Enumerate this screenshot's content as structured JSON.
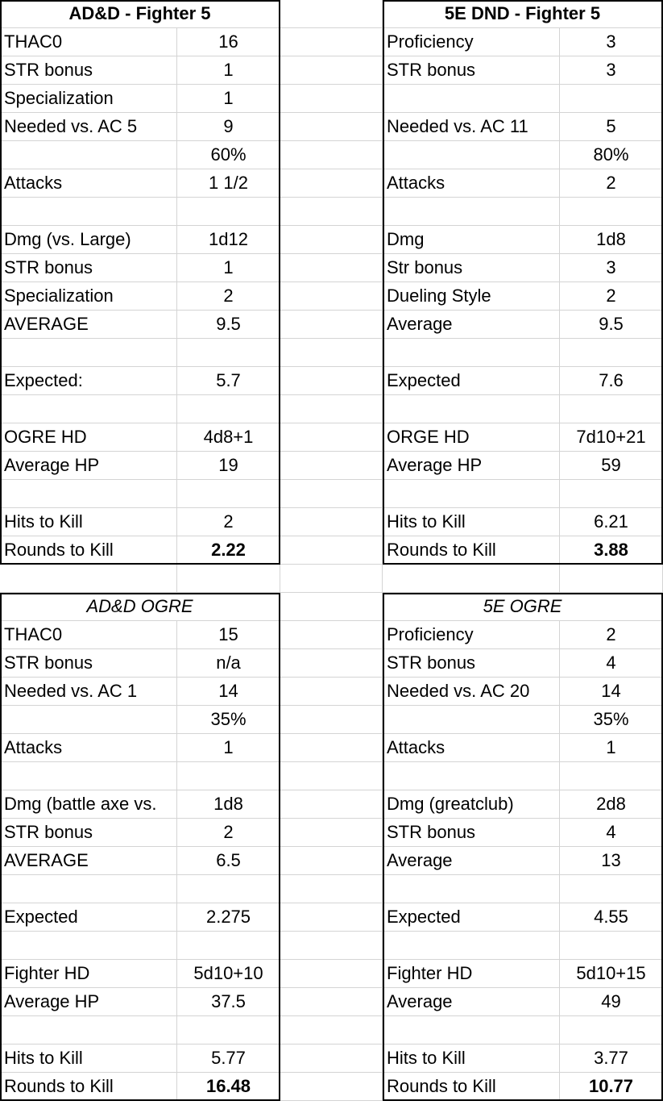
{
  "blocks": [
    {
      "id": "adnd-fighter",
      "title": "AD&D - Fighter 5",
      "title_style": "bold",
      "rows": [
        [
          "THAC0",
          "16"
        ],
        [
          "STR bonus",
          "1"
        ],
        [
          "Specialization",
          "1"
        ],
        [
          "Needed vs. AC 5",
          "9"
        ],
        [
          "",
          "60%"
        ],
        [
          "Attacks",
          "1 1/2"
        ],
        [
          "",
          ""
        ],
        [
          "Dmg (vs. Large)",
          "1d12"
        ],
        [
          "STR bonus",
          "1"
        ],
        [
          "Specialization",
          "2"
        ],
        [
          "AVERAGE",
          "9.5"
        ],
        [
          "",
          ""
        ],
        [
          "Expected:",
          "5.7"
        ],
        [
          "",
          ""
        ],
        [
          "OGRE HD",
          "4d8+1"
        ],
        [
          "Average HP",
          "19"
        ],
        [
          "",
          ""
        ],
        [
          "Hits to Kill",
          "2"
        ],
        [
          "Rounds to Kill",
          "2.22"
        ]
      ]
    },
    {
      "id": "5e-fighter",
      "title": "5E DND - Fighter 5",
      "title_style": "bold",
      "rows": [
        [
          "Proficiency",
          "3"
        ],
        [
          "STR bonus",
          "3"
        ],
        [
          "",
          ""
        ],
        [
          "Needed vs. AC 11",
          "5"
        ],
        [
          "",
          "80%"
        ],
        [
          "Attacks",
          "2"
        ],
        [
          "",
          ""
        ],
        [
          "Dmg",
          "1d8"
        ],
        [
          "Str bonus",
          "3"
        ],
        [
          "Dueling Style",
          "2"
        ],
        [
          "Average",
          "9.5"
        ],
        [
          "",
          ""
        ],
        [
          "Expected",
          "7.6"
        ],
        [
          "",
          ""
        ],
        [
          "ORGE HD",
          "7d10+21"
        ],
        [
          "Average HP",
          "59"
        ],
        [
          "",
          ""
        ],
        [
          "Hits to Kill",
          "6.21"
        ],
        [
          "Rounds to Kill",
          "3.88"
        ]
      ]
    },
    {
      "id": "adnd-ogre",
      "title": "AD&D OGRE",
      "title_style": "italic",
      "rows": [
        [
          "THAC0",
          "15"
        ],
        [
          "STR bonus",
          "n/a"
        ],
        [
          "Needed vs. AC 1",
          "14"
        ],
        [
          "",
          "35%"
        ],
        [
          "Attacks",
          "1"
        ],
        [
          "",
          ""
        ],
        [
          "Dmg (battle axe vs.",
          "1d8"
        ],
        [
          "STR bonus",
          "2"
        ],
        [
          "AVERAGE",
          "6.5"
        ],
        [
          "",
          ""
        ],
        [
          "Expected",
          "2.275"
        ],
        [
          "",
          ""
        ],
        [
          "Fighter HD",
          "5d10+10"
        ],
        [
          "Average HP",
          "37.5"
        ],
        [
          "",
          ""
        ],
        [
          "Hits to Kill",
          "5.77"
        ],
        [
          "Rounds to Kill",
          "16.48"
        ]
      ]
    },
    {
      "id": "5e-ogre",
      "title": "5E OGRE",
      "title_style": "italic",
      "rows": [
        [
          "Proficiency",
          "2"
        ],
        [
          "STR bonus",
          "4"
        ],
        [
          "Needed vs. AC 20",
          "14"
        ],
        [
          "",
          "35%"
        ],
        [
          "Attacks",
          "1"
        ],
        [
          "",
          ""
        ],
        [
          "Dmg (greatclub)",
          "2d8"
        ],
        [
          "STR bonus",
          "4"
        ],
        [
          "Average",
          "13"
        ],
        [
          "",
          ""
        ],
        [
          "Expected",
          "4.55"
        ],
        [
          "",
          ""
        ],
        [
          "Fighter HD",
          "5d10+15"
        ],
        [
          "Average",
          "49"
        ],
        [
          "",
          ""
        ],
        [
          "Hits to Kill",
          "3.77"
        ],
        [
          "Rounds to Kill",
          "10.77"
        ]
      ]
    }
  ]
}
